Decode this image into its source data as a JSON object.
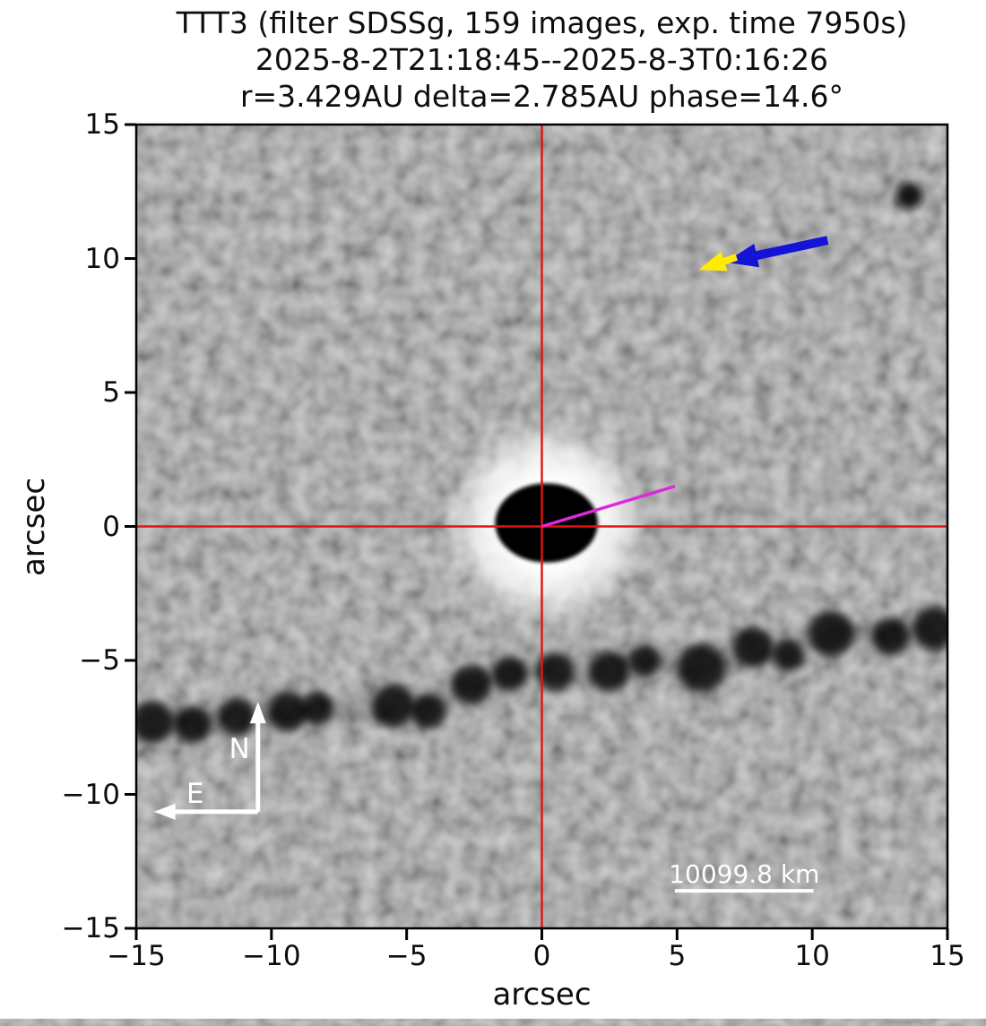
{
  "figure": {
    "title_line1": "TTT3 (filter SDSSg, 159 images, exp. time 7950s)",
    "title_line2": "2025-8-2T21:18:45--2025-8-3T0:16:26",
    "title_line3": "r=3.429AU delta=2.785AU phase=14.6°"
  },
  "chart_data": {
    "type": "heatmap",
    "title": [
      "TTT3 (filter SDSSg, 159 images, exp. time 7950s)",
      "2025-8-2T21:18:45--2025-8-3T0:16:26",
      "r=3.429AU delta=2.785AU phase=14.6°"
    ],
    "xlabel": "arcsec",
    "ylabel": "arcsec",
    "xlim": [
      -15,
      15
    ],
    "ylim": [
      -15,
      15
    ],
    "xticks": {
      "values": [
        -15,
        -10,
        -5,
        0,
        5,
        10,
        15
      ],
      "labels": [
        "−15",
        "−10",
        "−5",
        "0",
        "5",
        "10",
        "15"
      ]
    },
    "yticks": {
      "values": [
        15,
        10,
        5,
        0,
        -5,
        -10,
        -15
      ],
      "labels": [
        "15",
        "10",
        "5",
        "0",
        "−5",
        "−10",
        "−15"
      ]
    },
    "grid": false,
    "background_gray": "#9b9b9b",
    "annotations": {
      "crosshair": {
        "x": 0,
        "y": 0,
        "color": "#e41212",
        "width": 2.4
      },
      "coma": {
        "cx": 0.17,
        "cy": 0.13,
        "halo_radius": 3.8,
        "core_rx": 1.9,
        "core_ry": 1.48,
        "halo_color": "#ffffff",
        "core_color": "#060606"
      },
      "magenta_line": {
        "from": [
          0,
          0
        ],
        "to": [
          4.92,
          1.5
        ],
        "color": "#dd28dd",
        "width": 3.5
      },
      "blue_arrow": {
        "tail": [
          10.57,
          10.68
        ],
        "tip": [
          6.78,
          9.86
        ],
        "color": "#1414d8",
        "shaft_width": 10,
        "head_length": 36,
        "head_width": 27
      },
      "yellow_arrow": {
        "tail": [
          7.2,
          10.05
        ],
        "tip": [
          5.8,
          9.58
        ],
        "color": "#ffec00",
        "shaft_width": 8,
        "head_length": 30,
        "head_width": 23
      },
      "star_trail": [
        {
          "x": -14.4,
          "y": -7.3,
          "r": 0.8
        },
        {
          "x": -12.9,
          "y": -7.4,
          "r": 0.7
        },
        {
          "x": -11.3,
          "y": -7.1,
          "r": 0.7
        },
        {
          "x": -9.4,
          "y": -6.9,
          "r": 0.75
        },
        {
          "x": -8.3,
          "y": -6.8,
          "r": 0.6
        },
        {
          "x": -5.5,
          "y": -6.7,
          "r": 0.8
        },
        {
          "x": -4.2,
          "y": -6.9,
          "r": 0.65
        },
        {
          "x": -2.6,
          "y": -5.9,
          "r": 0.75
        },
        {
          "x": -1.2,
          "y": -5.5,
          "r": 0.65
        },
        {
          "x": 0.5,
          "y": -5.4,
          "r": 0.7
        },
        {
          "x": 2.5,
          "y": -5.4,
          "r": 0.75
        },
        {
          "x": 3.8,
          "y": -5.0,
          "r": 0.6
        },
        {
          "x": 5.9,
          "y": -5.3,
          "r": 0.9
        },
        {
          "x": 7.8,
          "y": -4.5,
          "r": 0.75
        },
        {
          "x": 9.1,
          "y": -4.8,
          "r": 0.6
        },
        {
          "x": 10.7,
          "y": -4.0,
          "r": 0.85
        },
        {
          "x": 12.9,
          "y": -4.1,
          "r": 0.7
        },
        {
          "x": 14.5,
          "y": -3.8,
          "r": 0.8
        }
      ],
      "field_star": {
        "x": 13.6,
        "y": 12.35,
        "r": 0.5
      },
      "compass": {
        "corner": [
          -10.5,
          -10.65
        ],
        "north_tip": [
          -10.5,
          -6.55
        ],
        "east_tip": [
          -14.35,
          -10.65
        ],
        "north_label": "N",
        "east_label": "E",
        "color": "#ffffff"
      },
      "scale_bar": {
        "x1": 4.92,
        "x2": 10.05,
        "y": -13.6,
        "label": "10099.8 km",
        "color": "#ffffff"
      }
    }
  }
}
